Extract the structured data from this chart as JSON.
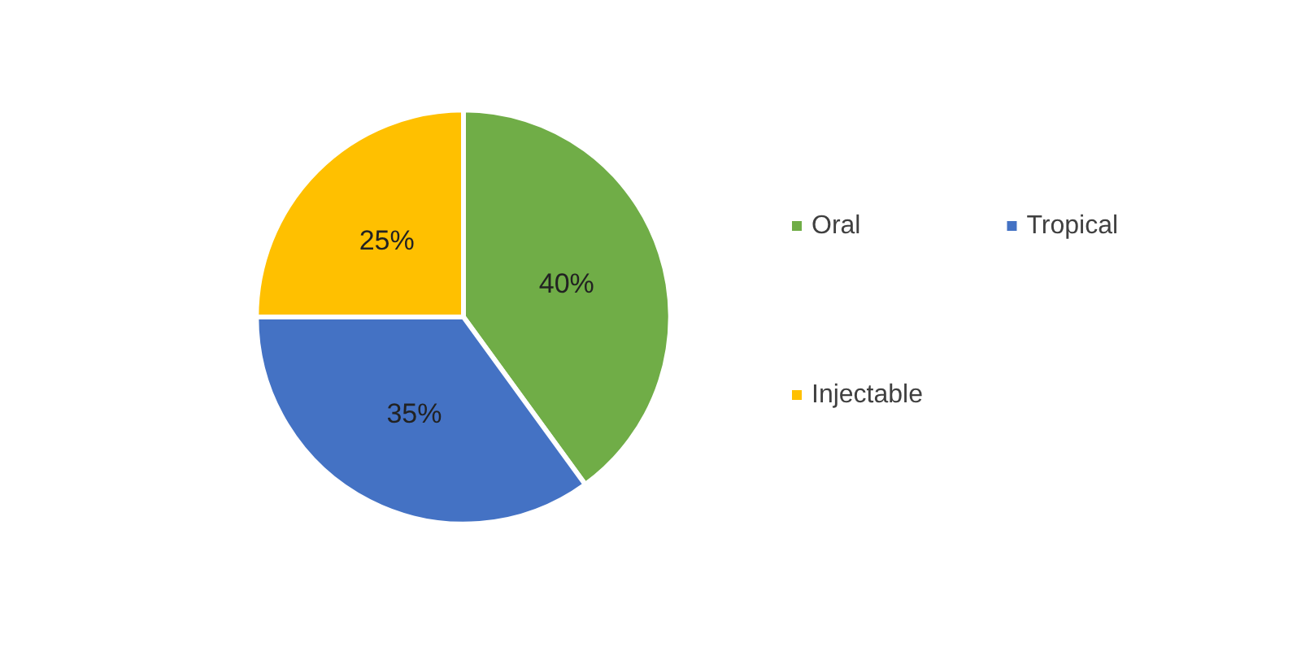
{
  "chart_data": {
    "type": "pie",
    "categories": [
      "Oral",
      "Tropical",
      "Injectable"
    ],
    "values": [
      40,
      35,
      25
    ],
    "colors": [
      "#70ad47",
      "#4472c4",
      "#ffc000"
    ],
    "value_labels": [
      "40%",
      "35%",
      "25%"
    ],
    "legend": "right"
  }
}
